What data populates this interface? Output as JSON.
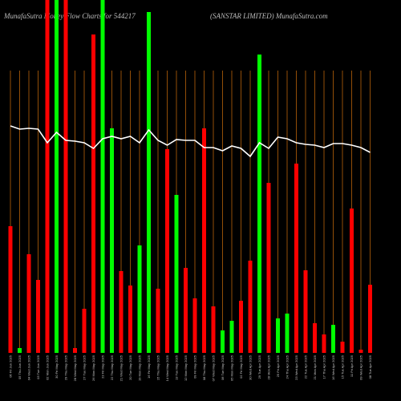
{
  "chart_data": {
    "type": "bar",
    "title": "MunafaSutra Money Flow Charts for 544217",
    "subtitle": "(SANSTAR LIMITED) MunafaSutra.com",
    "categories": [
      "06 Fri Jun 2025",
      "05 Thu Jun 2025",
      "04 Wed Jun 2025",
      "03 Tue Jun 2025",
      "02 Mon Jun 2025",
      "30 Fri May 2025",
      "29 Thu May 2025",
      "28 Wed May 2025",
      "27 Tue May 2025",
      "26 Mon May 2025",
      "23 Fri May 2025",
      "22 Thu May 2025",
      "21 Wed May 2025",
      "20 Tue May 2025",
      "19 Mon May 2025",
      "16 Fri May 2025",
      "15 Thu May 2025",
      "14 Wed May 2025",
      "13 Tue May 2025",
      "12 Mon May 2025",
      "09 Fri May 2025",
      "08 Thu May 2025",
      "07 Wed May 2025",
      "06 Tue May 2025",
      "05 Mon May 2025",
      "02 Fri May 2025",
      "30 Wed Apr 2025",
      "29 Tue Apr 2025",
      "28 Mon Apr 2025",
      "25 Fri Apr 2025",
      "24 Thu Apr 2025",
      "23 Wed Apr 2025",
      "22 Tue Apr 2025",
      "21 Mon Apr 2025",
      "17 Thu Apr 2025",
      "16 Wed Apr 2025",
      "15 Tue Apr 2025",
      "11 Fri Apr 2025",
      "09 Wed Apr 2025",
      "08 Tue Apr 2025"
    ],
    "values": [
      158,
      6,
      123,
      91,
      440,
      440,
      440,
      6,
      55,
      397,
      440,
      280,
      102,
      84,
      134,
      425,
      80,
      254,
      197,
      106,
      68,
      280,
      58,
      28,
      40,
      65,
      115,
      372,
      212,
      43,
      49,
      236,
      103,
      37,
      23,
      35,
      14,
      180,
      4,
      85
    ],
    "colors": [
      "#ff0000",
      "#00ff00",
      "#ff0000",
      "#ff0000",
      "#ff0000",
      "#00ff00",
      "#ff0000",
      "#ff0000",
      "#ff0000",
      "#ff0000",
      "#00ff00",
      "#00ff00",
      "#ff0000",
      "#ff0000",
      "#00ff00",
      "#00ff00",
      "#ff0000",
      "#ff0000",
      "#00ff00",
      "#ff0000",
      "#ff0000",
      "#ff0000",
      "#ff0000",
      "#00ff00",
      "#00ff00",
      "#ff0000",
      "#ff0000",
      "#00ff00",
      "#ff0000",
      "#00ff00",
      "#00ff00",
      "#ff0000",
      "#ff0000",
      "#ff0000",
      "#ff0000",
      "#00ff00",
      "#ff0000",
      "#ff0000",
      "#ff0000",
      "#ff0000"
    ],
    "line_values": [
      283,
      279,
      280,
      279,
      262,
      275,
      265,
      264,
      262,
      255,
      267,
      270,
      267,
      270,
      262,
      278,
      265,
      259,
      266,
      265,
      265,
      256,
      256,
      252,
      258,
      255,
      245,
      262,
      255,
      269,
      267,
      262,
      260,
      259,
      256,
      261,
      261,
      259,
      256,
      250
    ],
    "line_color": "#ffffff",
    "ylim": [
      0,
      440
    ],
    "grid_color": "#b8620a"
  }
}
